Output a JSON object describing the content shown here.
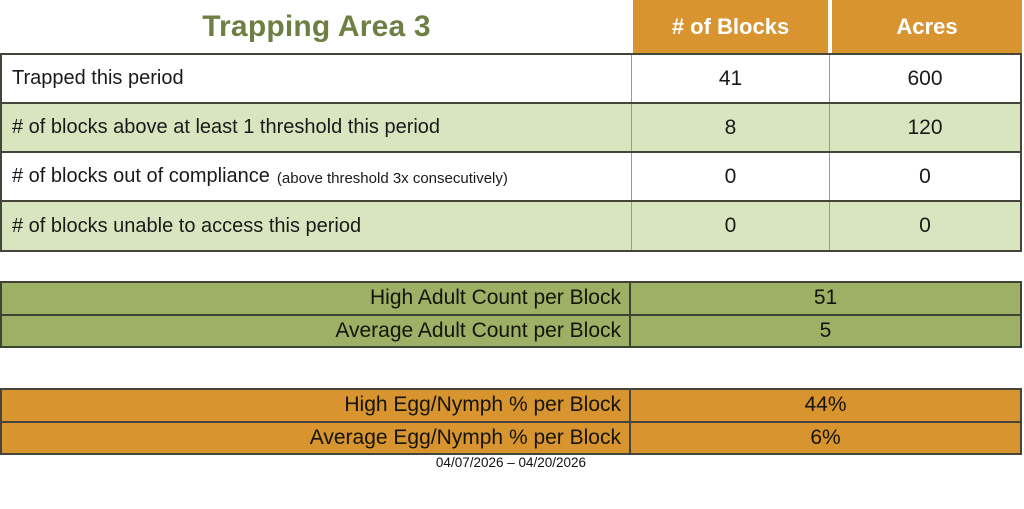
{
  "title": "Trapping Area 3",
  "colors": {
    "header_orange": "#D8952F",
    "row_light_green": "#D9E5BE",
    "adult_olive": "#9DB065",
    "title_green": "#6F7F44"
  },
  "top_table": {
    "columns": [
      "# of Blocks",
      "Acres"
    ],
    "rows": [
      {
        "label": "Trapped this period",
        "blocks": "41",
        "acres": "600"
      },
      {
        "label": "# of blocks above at least 1 threshold this period",
        "blocks": "8",
        "acres": "120"
      },
      {
        "label": "# of blocks out of compliance",
        "note": "(above threshold 3x consecutively)",
        "blocks": "0",
        "acres": "0"
      },
      {
        "label": "# of blocks unable to access this period",
        "blocks": "0",
        "acres": "0"
      }
    ]
  },
  "adult_table": {
    "rows": [
      {
        "label": "High Adult Count per Block",
        "value": "51"
      },
      {
        "label": "Average Adult Count per Block",
        "value": "5"
      }
    ]
  },
  "egg_table": {
    "rows": [
      {
        "label": "High Egg/Nymph % per Block",
        "value": "44%"
      },
      {
        "label": "Average Egg/Nymph % per Block",
        "value": "6%"
      }
    ]
  },
  "date_range": "04/07/2026 – 04/20/2026"
}
